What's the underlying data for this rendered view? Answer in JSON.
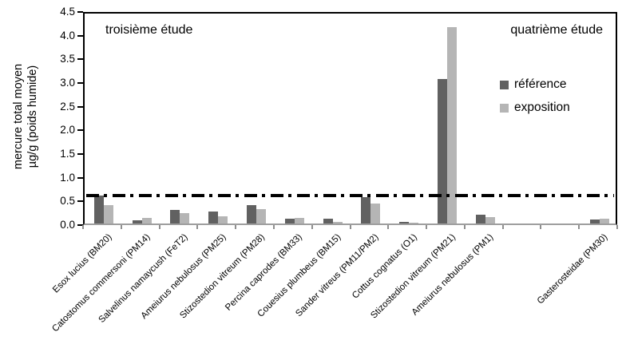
{
  "chart_data": {
    "type": "bar",
    "title": "",
    "ylabel_line1": "mercure total moyen",
    "ylabel_line2": "µg/g (poids humide)",
    "xlabel": "",
    "ylim": [
      0,
      4.5
    ],
    "ytick_step": 0.5,
    "ytick_labels": [
      "0.0",
      "0.5",
      "1.0",
      "1.5",
      "2.0",
      "2.5",
      "3.0",
      "3.5",
      "4.0",
      "4.5"
    ],
    "grid": false,
    "categories": [
      "Esox lucius (BM20)",
      "Catostomus commersoni (PM14)",
      "Salvelinus namaycush (FeT2)",
      "Ameiurus nebulosus (PM25)",
      "Stizostedion vitreum (PM28)",
      "Percina caprodes (BM33)",
      "Couesius plumbeus (BM15)",
      "Sander vitreus (PM11/PM2)",
      "Cottus cognatus (O1)",
      "Stizostedion vitreum (PM21)",
      "Ameiurus nebulosus (PM1)",
      "",
      "",
      "Gasterosteidae (PM30)"
    ],
    "series": [
      {
        "name": "référence",
        "color": "#616161",
        "values": [
          0.59,
          0.07,
          0.28,
          0.26,
          0.38,
          0.1,
          0.1,
          0.55,
          0.03,
          3.05,
          0.18,
          null,
          null,
          0.09
        ]
      },
      {
        "name": "exposition",
        "color": "#b5b5b5",
        "values": [
          0.39,
          0.12,
          0.22,
          0.16,
          0.3,
          0.11,
          0.04,
          0.43,
          0.02,
          4.15,
          0.13,
          null,
          null,
          0.1
        ]
      }
    ],
    "threshold_line": {
      "value": 0.65,
      "style": "dash-dot",
      "color": "#000000"
    },
    "annotations": [
      {
        "text": "troisième étude",
        "position": "top-left"
      },
      {
        "text": "quatrième étude",
        "position": "top-right"
      }
    ],
    "legend": {
      "position": "inside-right"
    }
  }
}
